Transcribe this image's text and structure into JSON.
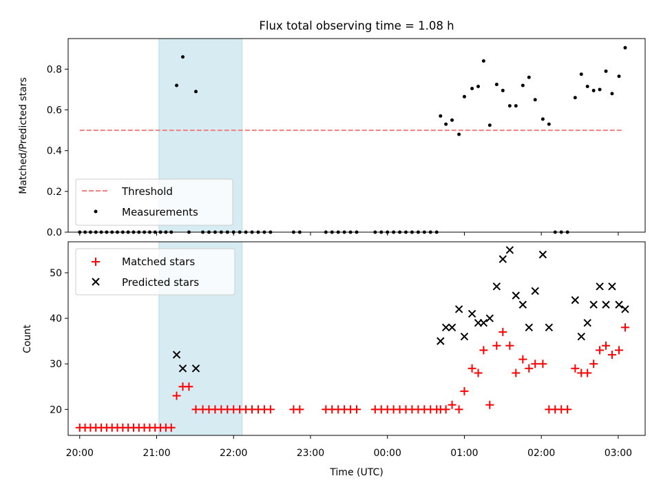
{
  "title": "Flux total observing time = 1.08 h",
  "chart_data": [
    {
      "type": "scatter",
      "ylabel": "Matched/Predicted stars",
      "xlabel": "",
      "x_unit": "hours since 20:00 UTC",
      "xlim": [
        -0.15,
        7.35
      ],
      "ylim": [
        0,
        0.95
      ],
      "yticks": [
        "0.0",
        "0.2",
        "0.4",
        "0.6",
        "0.8"
      ],
      "ytick_values": [
        0,
        0.2,
        0.4,
        0.6,
        0.8
      ],
      "highlight_span": [
        1.03,
        2.11
      ],
      "threshold": {
        "name": "Threshold",
        "value": 0.5,
        "x_start": 0,
        "x_end": 7.05,
        "color": "#f08080"
      },
      "legend": {
        "position": "lower left",
        "entries": [
          "Threshold",
          "Measurements"
        ]
      },
      "series": [
        {
          "name": "Measurements",
          "color": "#000000",
          "points": [
            [
              0.0,
              0
            ],
            [
              0.07,
              0
            ],
            [
              0.14,
              0
            ],
            [
              0.21,
              0
            ],
            [
              0.28,
              0
            ],
            [
              0.35,
              0
            ],
            [
              0.42,
              0
            ],
            [
              0.49,
              0
            ],
            [
              0.56,
              0
            ],
            [
              0.63,
              0
            ],
            [
              0.7,
              0
            ],
            [
              0.77,
              0
            ],
            [
              0.84,
              0
            ],
            [
              0.91,
              0
            ],
            [
              0.98,
              0
            ],
            [
              1.05,
              0
            ],
            [
              1.12,
              0
            ],
            [
              1.19,
              0
            ],
            [
              1.26,
              0.72
            ],
            [
              1.34,
              0.86
            ],
            [
              1.42,
              0
            ],
            [
              1.51,
              0.69
            ],
            [
              1.6,
              0
            ],
            [
              1.68,
              0
            ],
            [
              1.76,
              0
            ],
            [
              1.84,
              0
            ],
            [
              1.92,
              0
            ],
            [
              2.0,
              0
            ],
            [
              2.08,
              0
            ],
            [
              2.16,
              0
            ],
            [
              2.24,
              0
            ],
            [
              2.32,
              0
            ],
            [
              2.4,
              0
            ],
            [
              2.48,
              0
            ],
            [
              2.78,
              0
            ],
            [
              2.86,
              0
            ],
            [
              3.2,
              0
            ],
            [
              3.28,
              0
            ],
            [
              3.36,
              0
            ],
            [
              3.44,
              0
            ],
            [
              3.52,
              0
            ],
            [
              3.6,
              0
            ],
            [
              3.84,
              0
            ],
            [
              3.92,
              0
            ],
            [
              4.0,
              0
            ],
            [
              4.08,
              0
            ],
            [
              4.16,
              0
            ],
            [
              4.24,
              0
            ],
            [
              4.32,
              0
            ],
            [
              4.4,
              0
            ],
            [
              4.48,
              0
            ],
            [
              4.56,
              0
            ],
            [
              4.64,
              0
            ],
            [
              4.69,
              0.57
            ],
            [
              4.76,
              0.53
            ],
            [
              4.84,
              0.55
            ],
            [
              4.93,
              0.48
            ],
            [
              5.0,
              0.665
            ],
            [
              5.1,
              0.705
            ],
            [
              5.18,
              0.715
            ],
            [
              5.25,
              0.84
            ],
            [
              5.33,
              0.525
            ],
            [
              5.42,
              0.725
            ],
            [
              5.5,
              0.695
            ],
            [
              5.59,
              0.62
            ],
            [
              5.67,
              0.62
            ],
            [
              5.76,
              0.72
            ],
            [
              5.84,
              0.76
            ],
            [
              5.92,
              0.65
            ],
            [
              6.02,
              0.555
            ],
            [
              6.1,
              0.53
            ],
            [
              6.18,
              0
            ],
            [
              6.26,
              0
            ],
            [
              6.34,
              0
            ],
            [
              6.44,
              0.66
            ],
            [
              6.52,
              0.775
            ],
            [
              6.6,
              0.715
            ],
            [
              6.68,
              0.695
            ],
            [
              6.76,
              0.7
            ],
            [
              6.84,
              0.79
            ],
            [
              6.92,
              0.68
            ],
            [
              7.01,
              0.765
            ],
            [
              7.09,
              0.905
            ]
          ]
        }
      ]
    },
    {
      "type": "scatter",
      "ylabel": "Count",
      "xlabel": "Time (UTC)",
      "x_unit": "hours since 20:00 UTC",
      "xlim": [
        -0.15,
        7.35
      ],
      "ylim": [
        14.3,
        56.8
      ],
      "yticks": [
        "20",
        "30",
        "40",
        "50"
      ],
      "ytick_values": [
        20,
        30,
        40,
        50
      ],
      "xticks": [
        "20:00",
        "21:00",
        "22:00",
        "23:00",
        "00:00",
        "01:00",
        "02:00",
        "03:00"
      ],
      "xtick_values": [
        0,
        1,
        2,
        3,
        4,
        5,
        6,
        7
      ],
      "highlight_span": [
        1.03,
        2.11
      ],
      "legend": {
        "position": "upper left",
        "entries": [
          "Matched stars",
          "Predicted stars"
        ]
      },
      "series": [
        {
          "name": "Matched stars",
          "marker": "+",
          "color": "#ff0000",
          "points": [
            [
              0.0,
              16
            ],
            [
              0.07,
              16
            ],
            [
              0.14,
              16
            ],
            [
              0.21,
              16
            ],
            [
              0.28,
              16
            ],
            [
              0.35,
              16
            ],
            [
              0.42,
              16
            ],
            [
              0.49,
              16
            ],
            [
              0.56,
              16
            ],
            [
              0.63,
              16
            ],
            [
              0.7,
              16
            ],
            [
              0.77,
              16
            ],
            [
              0.84,
              16
            ],
            [
              0.91,
              16
            ],
            [
              0.98,
              16
            ],
            [
              1.05,
              16
            ],
            [
              1.12,
              16
            ],
            [
              1.19,
              16
            ],
            [
              1.26,
              23
            ],
            [
              1.34,
              25
            ],
            [
              1.42,
              25
            ],
            [
              1.51,
              20
            ],
            [
              1.6,
              20
            ],
            [
              1.68,
              20
            ],
            [
              1.76,
              20
            ],
            [
              1.84,
              20
            ],
            [
              1.92,
              20
            ],
            [
              2.0,
              20
            ],
            [
              2.08,
              20
            ],
            [
              2.16,
              20
            ],
            [
              2.24,
              20
            ],
            [
              2.32,
              20
            ],
            [
              2.4,
              20
            ],
            [
              2.48,
              20
            ],
            [
              2.78,
              20
            ],
            [
              2.86,
              20
            ],
            [
              3.2,
              20
            ],
            [
              3.28,
              20
            ],
            [
              3.36,
              20
            ],
            [
              3.44,
              20
            ],
            [
              3.52,
              20
            ],
            [
              3.6,
              20
            ],
            [
              3.84,
              20
            ],
            [
              3.92,
              20
            ],
            [
              4.0,
              20
            ],
            [
              4.08,
              20
            ],
            [
              4.16,
              20
            ],
            [
              4.24,
              20
            ],
            [
              4.32,
              20
            ],
            [
              4.4,
              20
            ],
            [
              4.48,
              20
            ],
            [
              4.56,
              20
            ],
            [
              4.64,
              20
            ],
            [
              4.69,
              20
            ],
            [
              4.76,
              20
            ],
            [
              4.84,
              21
            ],
            [
              4.93,
              20
            ],
            [
              5.0,
              24
            ],
            [
              5.1,
              29
            ],
            [
              5.18,
              28
            ],
            [
              5.25,
              33
            ],
            [
              5.33,
              21
            ],
            [
              5.42,
              34
            ],
            [
              5.5,
              37
            ],
            [
              5.59,
              34
            ],
            [
              5.67,
              28
            ],
            [
              5.76,
              31
            ],
            [
              5.84,
              29
            ],
            [
              5.92,
              30
            ],
            [
              6.02,
              30
            ],
            [
              6.1,
              20
            ],
            [
              6.18,
              20
            ],
            [
              6.26,
              20
            ],
            [
              6.34,
              20
            ],
            [
              6.44,
              29
            ],
            [
              6.52,
              28
            ],
            [
              6.6,
              28
            ],
            [
              6.68,
              30
            ],
            [
              6.76,
              33
            ],
            [
              6.84,
              34
            ],
            [
              6.92,
              32
            ],
            [
              7.01,
              33
            ],
            [
              7.09,
              38
            ]
          ]
        },
        {
          "name": "Predicted stars",
          "marker": "x",
          "color": "#000000",
          "points": [
            [
              1.26,
              32
            ],
            [
              1.34,
              29
            ],
            [
              1.51,
              29
            ],
            [
              4.69,
              35
            ],
            [
              4.76,
              38
            ],
            [
              4.84,
              38
            ],
            [
              4.93,
              42
            ],
            [
              5.0,
              36
            ],
            [
              5.1,
              41
            ],
            [
              5.18,
              39
            ],
            [
              5.25,
              39
            ],
            [
              5.33,
              40
            ],
            [
              5.42,
              47
            ],
            [
              5.5,
              53
            ],
            [
              5.59,
              55
            ],
            [
              5.67,
              45
            ],
            [
              5.76,
              43
            ],
            [
              5.84,
              38
            ],
            [
              5.92,
              46
            ],
            [
              6.02,
              54
            ],
            [
              6.1,
              38
            ],
            [
              6.44,
              44
            ],
            [
              6.52,
              36
            ],
            [
              6.6,
              39
            ],
            [
              6.68,
              43
            ],
            [
              6.76,
              47
            ],
            [
              6.84,
              43
            ],
            [
              6.92,
              47
            ],
            [
              7.01,
              43
            ],
            [
              7.09,
              42
            ]
          ]
        }
      ]
    }
  ]
}
